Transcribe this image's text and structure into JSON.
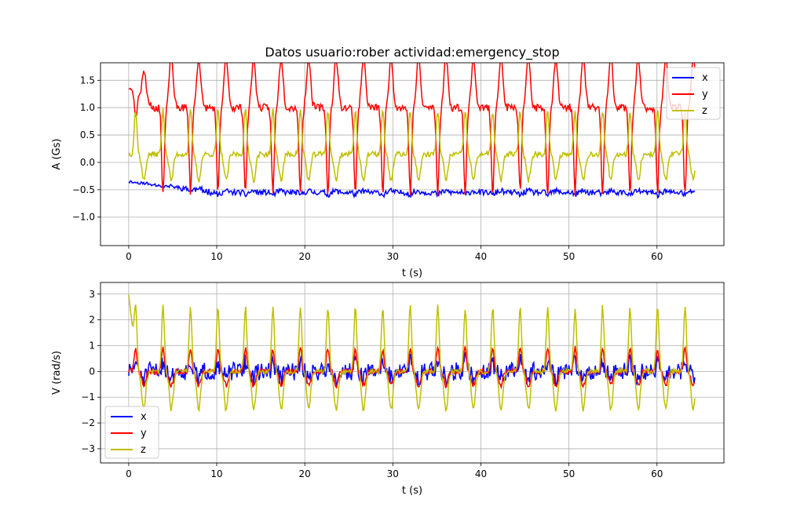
{
  "figure": {
    "title": "Datos usuario:rober actividad:emergency_stop"
  },
  "chart_data": [
    {
      "type": "line",
      "title": "Datos usuario:rober actividad:emergency_stop",
      "xlabel": "t (s)",
      "ylabel": "A (Gs)",
      "xlim": [
        -3.2,
        67.6
      ],
      "ylim": [
        -1.52,
        1.82
      ],
      "xticks": [
        0,
        10,
        20,
        30,
        40,
        50,
        60
      ],
      "yticks": [
        -1.0,
        -0.5,
        0.0,
        0.5,
        1.0,
        1.5
      ],
      "ytick_labels": [
        "−1.0",
        "−0.5",
        "0.0",
        "0.5",
        "1.0",
        "1.5"
      ],
      "grid": true,
      "legend": "upper right",
      "t_end": 64.4,
      "series": [
        {
          "name": "x",
          "color": "#0000ff",
          "base": -0.55,
          "amp": -0.05,
          "noise": 0.05,
          "seed": 11,
          "early": {
            "until": 10,
            "value": -0.35
          }
        },
        {
          "name": "y",
          "color": "#ff0000",
          "base": 1.0,
          "amp": -1.55,
          "noise": 0.07,
          "seed": 23,
          "early": {
            "until": 3,
            "value": 1.35
          }
        },
        {
          "name": "z",
          "color": "#bfbf00",
          "base": 0.15,
          "amp": 0.8,
          "noise": 0.05,
          "seed": 37
        }
      ]
    },
    {
      "type": "line",
      "xlabel": "t (s)",
      "ylabel": "V (rad/s)",
      "xlim": [
        -3.2,
        67.6
      ],
      "ylim": [
        -3.55,
        3.45
      ],
      "xticks": [
        0,
        10,
        20,
        30,
        40,
        50,
        60
      ],
      "yticks": [
        -3,
        -2,
        -1,
        0,
        1,
        2,
        3
      ],
      "ytick_labels": [
        "−3",
        "−2",
        "−1",
        "0",
        "1",
        "2",
        "3"
      ],
      "grid": true,
      "legend": "lower left",
      "t_end": 64.4,
      "series": [
        {
          "name": "x",
          "color": "#0000ff",
          "base": 0.0,
          "amp": 0.4,
          "noise": 0.35,
          "seed": 51
        },
        {
          "name": "y",
          "color": "#ff0000",
          "base": 0.0,
          "amp": 0.9,
          "noise": 0.1,
          "seed": 63
        },
        {
          "name": "z",
          "color": "#bfbf00",
          "base": 0.0,
          "amp": 2.5,
          "noise": 0.1,
          "seed": 77,
          "early": {
            "until": 1,
            "value": 3.0
          }
        }
      ]
    }
  ]
}
